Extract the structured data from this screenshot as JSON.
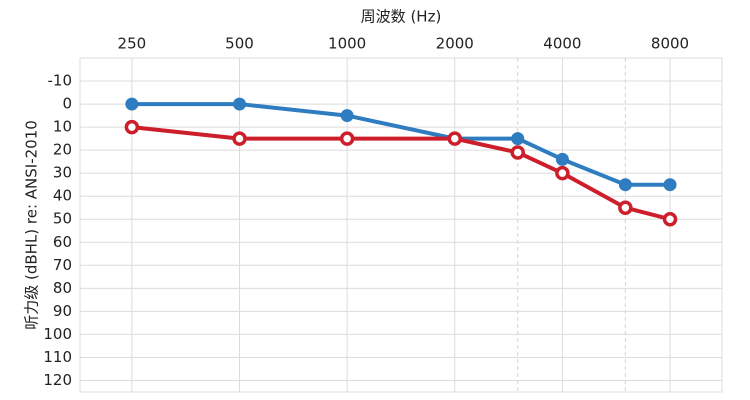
{
  "chart_data": {
    "type": "line",
    "x_label": "周波数 (Hz)",
    "y_label": "听力级 (dBHL) re: ANSI-2010",
    "x": [
      250,
      500,
      1000,
      2000,
      3000,
      4000,
      6000,
      8000
    ],
    "xscale": "log",
    "xlim": [
      179,
      11180
    ],
    "xticks": [
      250,
      500,
      1000,
      2000,
      4000,
      8000
    ],
    "minor_xgrid": [
      3000,
      6000
    ],
    "ylim": [
      -20,
      125
    ],
    "yinverted": true,
    "yticks": [
      -10,
      0,
      10,
      20,
      30,
      40,
      50,
      60,
      70,
      80,
      90,
      100,
      110,
      120
    ],
    "grid": true,
    "series": [
      {
        "color": "#2f7cc0",
        "marker": "filled",
        "values": [
          0,
          0,
          5,
          15,
          15,
          24,
          35,
          35
        ]
      },
      {
        "color": "#cc1f2b",
        "marker": "open",
        "values": [
          10,
          15,
          15,
          15,
          21,
          30,
          45,
          50
        ]
      }
    ]
  }
}
